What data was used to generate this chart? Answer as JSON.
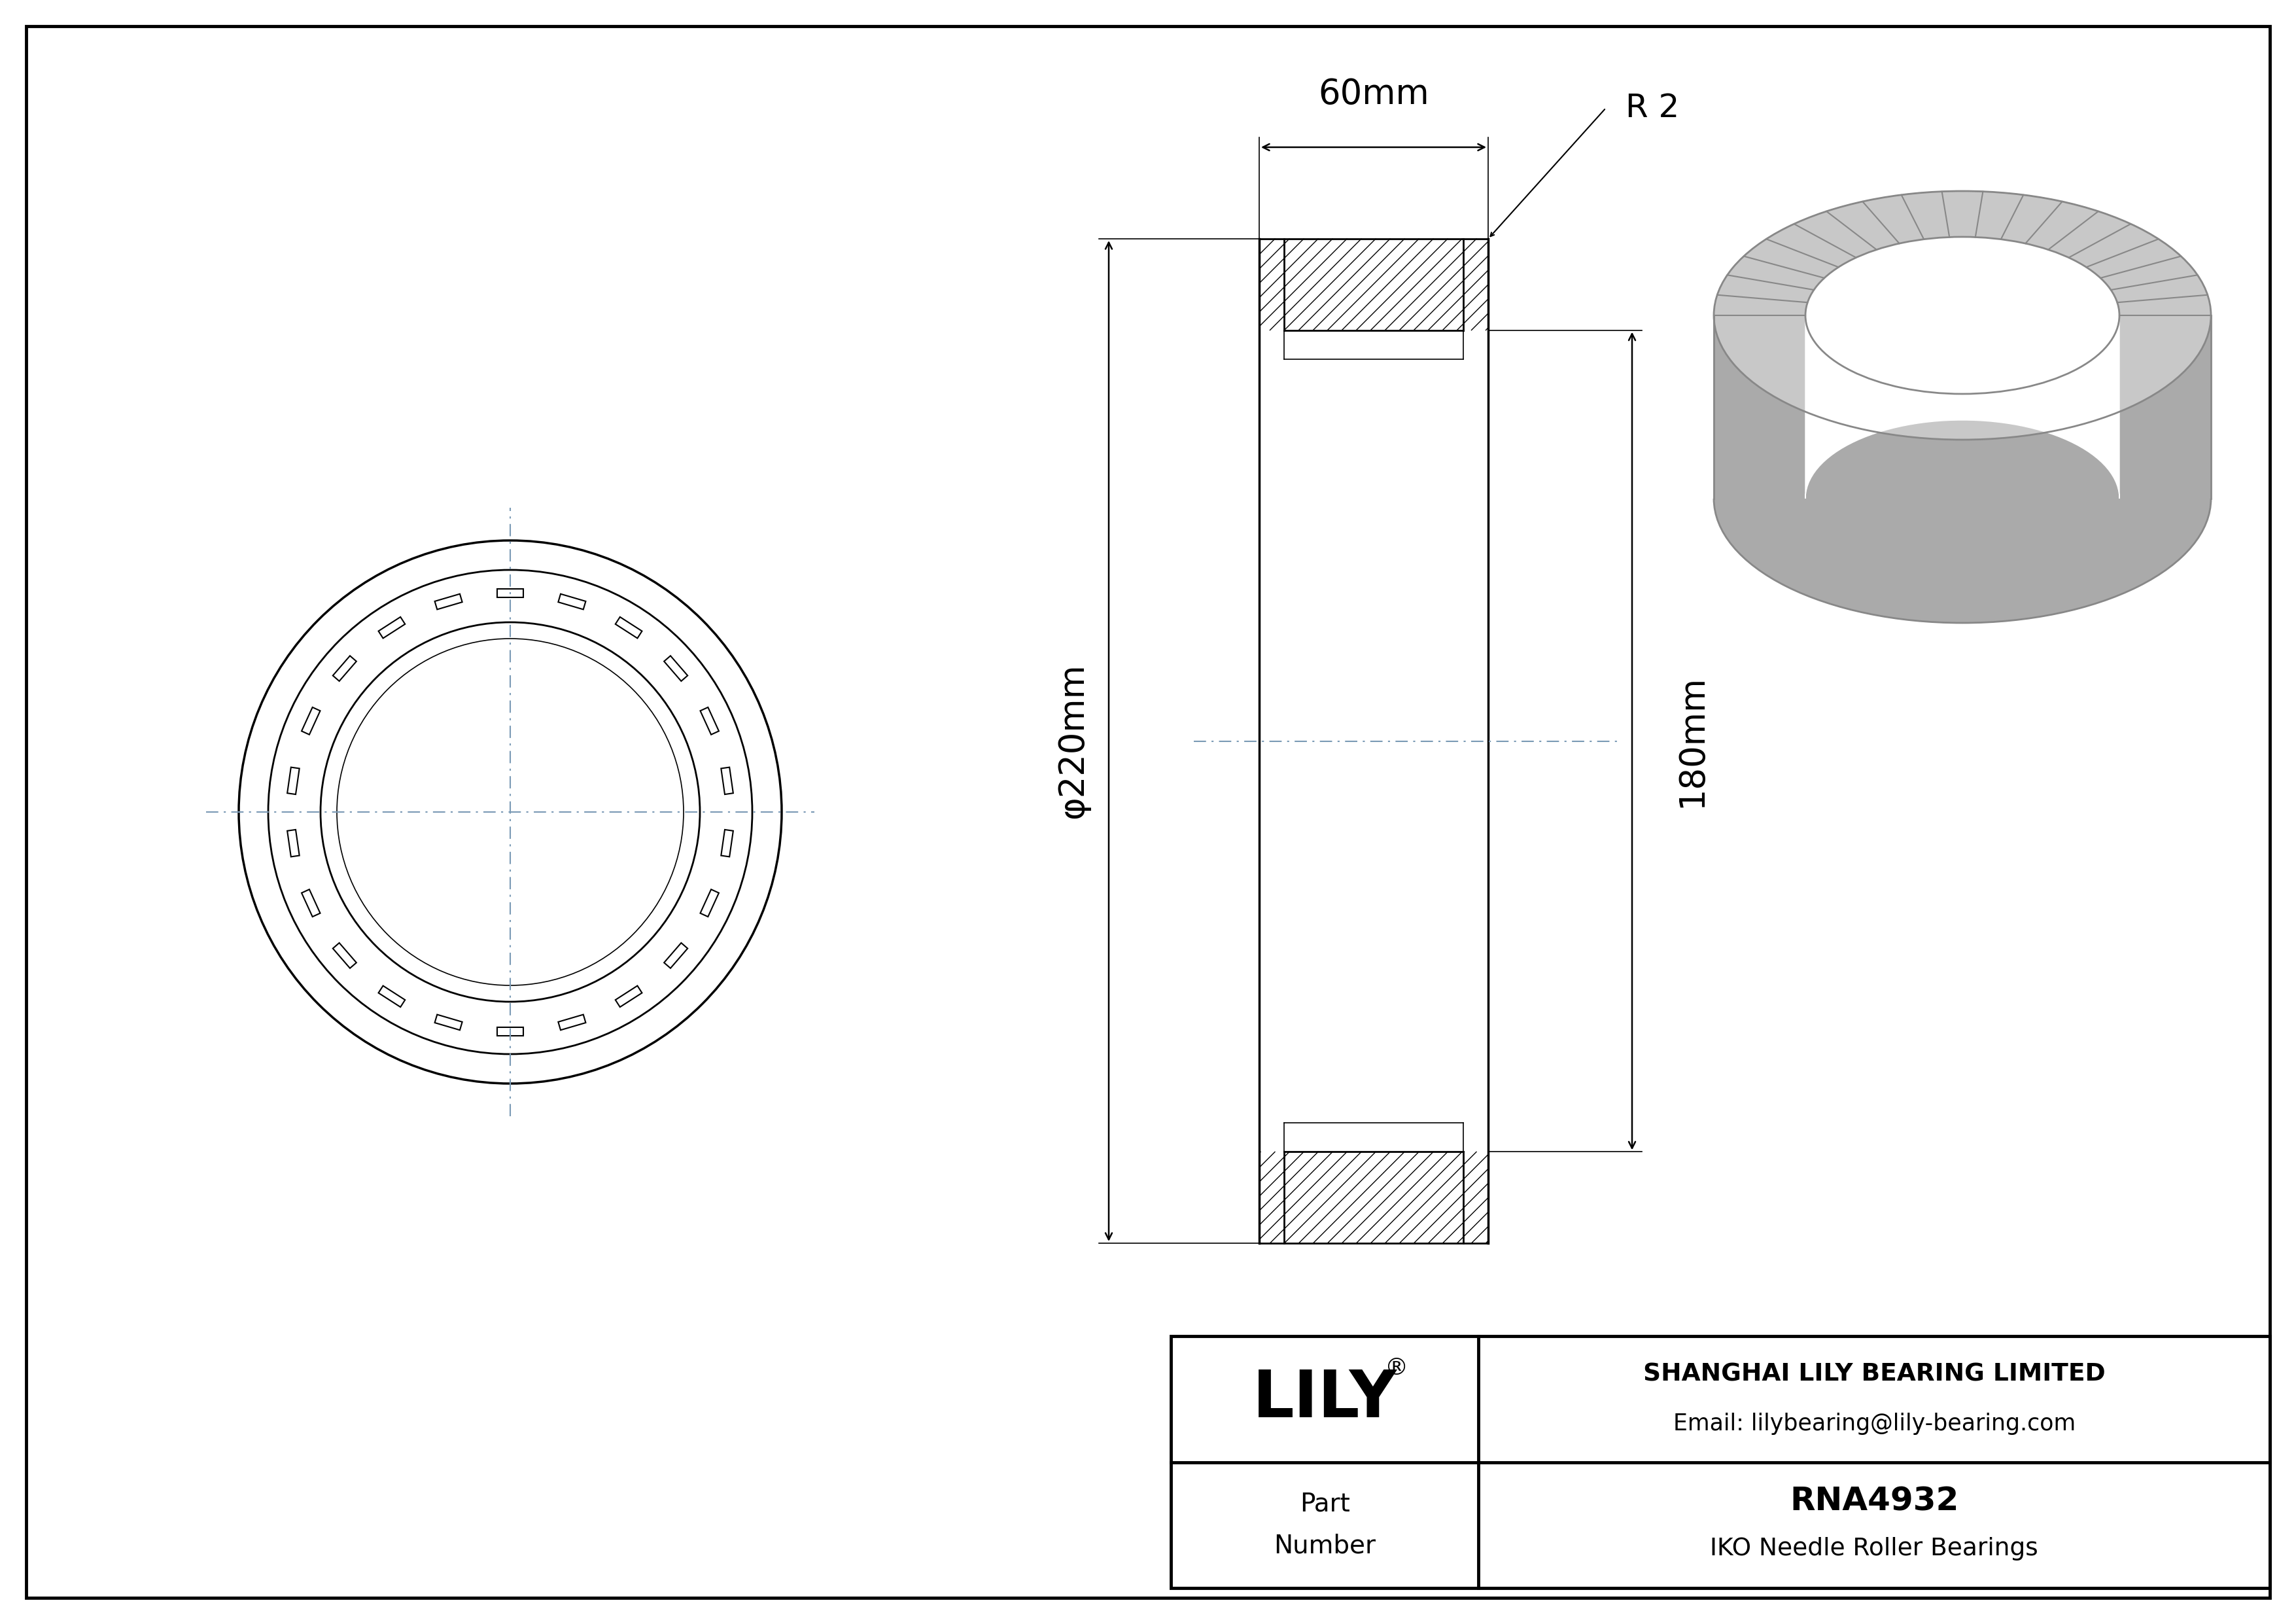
{
  "bg_color": "#ffffff",
  "line_color": "#000000",
  "dim_color": "#000000",
  "centerline_color": "#7a9ab5",
  "gray_3d": "#aaaaaa",
  "gray_dark": "#888888",
  "gray_light": "#cccccc",
  "company_name": "SHANGHAI LILY BEARING LIMITED",
  "company_email": "Email: lilybearing@lily-bearing.com",
  "part_number": "RNA4932",
  "bearing_type": "IKO Needle Roller Bearings",
  "lily_text": "LILY",
  "registered_mark": "®",
  "width_label": "60mm",
  "diameter_label": "φ220mm",
  "height_label": "180mm",
  "radius_label": "R 2",
  "roller_count": 22,
  "border_lw": 3.5,
  "drawing_lw": 2.0,
  "thin_lw": 1.2,
  "centerline_lw": 1.5
}
